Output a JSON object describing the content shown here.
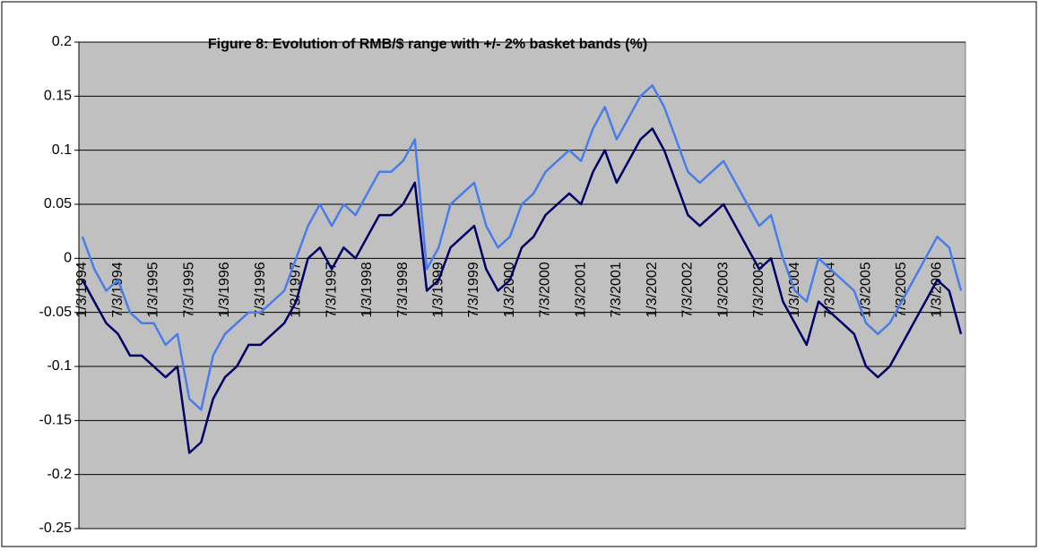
{
  "chart_data": {
    "type": "line",
    "title": "Figure 8: Evolution of RMB/$ range with +/- 2% basket  bands (%)",
    "categories": [
      "1/3/1994",
      null,
      null,
      "7/3/1994",
      null,
      null,
      "1/3/1995",
      null,
      null,
      "7/3/1995",
      null,
      null,
      "1/3/1996",
      null,
      null,
      "7/3/1996",
      null,
      null,
      "1/3/1997",
      null,
      null,
      "7/3/1997",
      null,
      null,
      "1/3/1998",
      null,
      null,
      "7/3/1998",
      null,
      null,
      "1/3/1999",
      null,
      null,
      "7/3/1999",
      null,
      null,
      "1/3/2000",
      null,
      null,
      "7/3/2000",
      null,
      null,
      "1/3/2001",
      null,
      null,
      "7/3/2001",
      null,
      null,
      "1/3/2002",
      null,
      null,
      "7/3/2002",
      null,
      null,
      "1/3/2003",
      null,
      null,
      "7/3/2003",
      null,
      null,
      "1/3/2004",
      null,
      null,
      "7/3/2004",
      null,
      null,
      "1/3/2005",
      null,
      null,
      "7/3/2005",
      null,
      null,
      "1/3/2006",
      null,
      null
    ],
    "series": [
      {
        "color": "#4a7de8",
        "values": [
          0.02,
          -0.01,
          -0.03,
          -0.02,
          -0.05,
          -0.06,
          -0.06,
          -0.08,
          -0.07,
          -0.13,
          -0.14,
          -0.09,
          -0.07,
          -0.06,
          -0.05,
          -0.05,
          -0.04,
          -0.03,
          0.0,
          0.03,
          0.05,
          0.03,
          0.05,
          0.04,
          0.06,
          0.08,
          0.08,
          0.09,
          0.11,
          -0.01,
          0.01,
          0.05,
          0.06,
          0.07,
          0.03,
          0.01,
          0.02,
          0.05,
          0.06,
          0.08,
          0.09,
          0.1,
          0.09,
          0.12,
          0.14,
          0.11,
          0.13,
          0.15,
          0.16,
          0.14,
          0.11,
          0.08,
          0.07,
          0.08,
          0.09,
          0.07,
          0.05,
          0.03,
          0.04,
          0.0,
          -0.03,
          -0.04,
          0.0,
          -0.01,
          -0.02,
          -0.03,
          -0.06,
          -0.07,
          -0.06,
          -0.04,
          -0.02,
          0.0,
          0.02,
          0.01,
          -0.03
        ]
      },
      {
        "color": "#000066",
        "values": [
          -0.02,
          -0.04,
          -0.06,
          -0.07,
          -0.09,
          -0.09,
          -0.1,
          -0.11,
          -0.1,
          -0.18,
          -0.17,
          -0.13,
          -0.11,
          -0.1,
          -0.08,
          -0.08,
          -0.07,
          -0.06,
          -0.04,
          0.0,
          0.01,
          -0.01,
          0.01,
          0.0,
          0.02,
          0.04,
          0.04,
          0.05,
          0.07,
          -0.03,
          -0.02,
          0.01,
          0.02,
          0.03,
          -0.01,
          -0.03,
          -0.02,
          0.01,
          0.02,
          0.04,
          0.05,
          0.06,
          0.05,
          0.08,
          0.1,
          0.07,
          0.09,
          0.11,
          0.12,
          0.1,
          0.07,
          0.04,
          0.03,
          0.04,
          0.05,
          0.03,
          0.01,
          -0.01,
          0.0,
          -0.04,
          -0.06,
          -0.08,
          -0.04,
          -0.05,
          -0.06,
          -0.07,
          -0.1,
          -0.11,
          -0.1,
          -0.08,
          -0.06,
          -0.04,
          -0.02,
          -0.03,
          -0.07
        ]
      }
    ],
    "ylim": [
      -0.25,
      0.2
    ],
    "yticks": [
      0.2,
      0.15,
      0.1,
      0.05,
      0,
      -0.05,
      -0.1,
      -0.15,
      -0.2,
      -0.25
    ],
    "grid": true
  }
}
